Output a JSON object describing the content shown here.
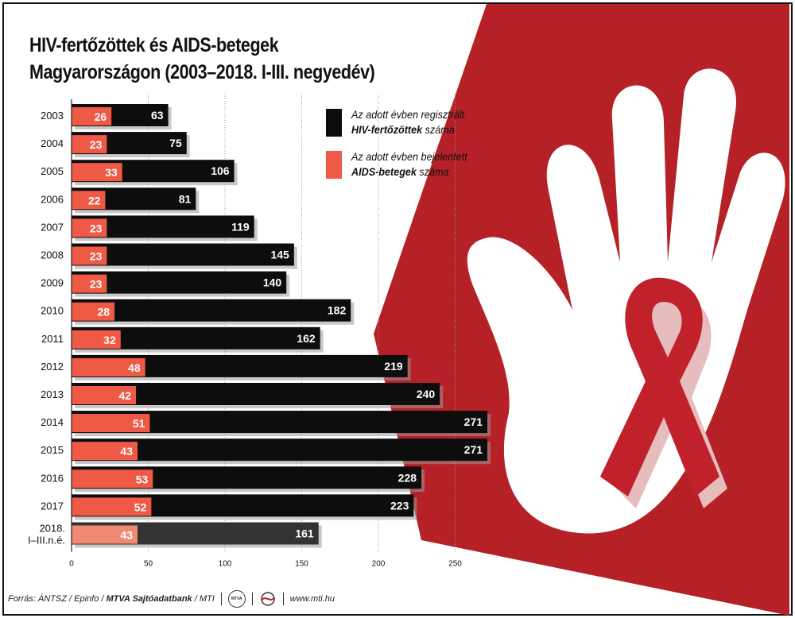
{
  "title_line1": "HIV-fertőzöttek és AIDS-betegek",
  "title_line2": "Magyarországon (2003–2018. I-III. negyedév)",
  "legend": [
    {
      "line1": "Az adott évben regisztrált",
      "bold": "HIV-fertőzöttek",
      "rest": " száma",
      "color": "#0d0d0d"
    },
    {
      "line1": "Az adott évben bejelentett",
      "bold": "AIDS-betegek",
      "rest": " száma",
      "color": "#ee5a45"
    }
  ],
  "footer": {
    "source_prefix": "Forrás: ÁNTSZ / Epinfo / ",
    "source_bold": "MTVA Sajtóadatbank",
    "source_suffix": " / MTI",
    "logo_text": "MTVA",
    "website": "www.mti.hu"
  },
  "colors": {
    "hiv": "#0d0d0d",
    "aids": "#ee5a45",
    "hiv_last": "#333333",
    "aids_last": "#f08a72",
    "background_red": "#b52126",
    "ribbon": "#c0212a"
  },
  "chart_data": {
    "type": "bar",
    "orientation": "horizontal",
    "categories": [
      "2003",
      "2004",
      "2005",
      "2006",
      "2007",
      "2008",
      "2009",
      "2010",
      "2011",
      "2012",
      "2013",
      "2014",
      "2015",
      "2016",
      "2017",
      "2018. I–III.n.é."
    ],
    "series": [
      {
        "name": "Az adott évben regisztrált HIV-fertőzöttek száma",
        "values": [
          63,
          75,
          106,
          81,
          119,
          145,
          140,
          182,
          162,
          219,
          240,
          271,
          271,
          228,
          223,
          161
        ]
      },
      {
        "name": "Az adott évben bejelentett AIDS-betegek száma",
        "values": [
          26,
          23,
          33,
          22,
          23,
          23,
          23,
          28,
          32,
          48,
          42,
          51,
          43,
          53,
          52,
          43
        ]
      }
    ],
    "xlim": [
      0,
      300
    ],
    "xticks": [
      0,
      50,
      100,
      150,
      200,
      250
    ],
    "grid": "vertical dotted",
    "legend_position": "top-right"
  }
}
